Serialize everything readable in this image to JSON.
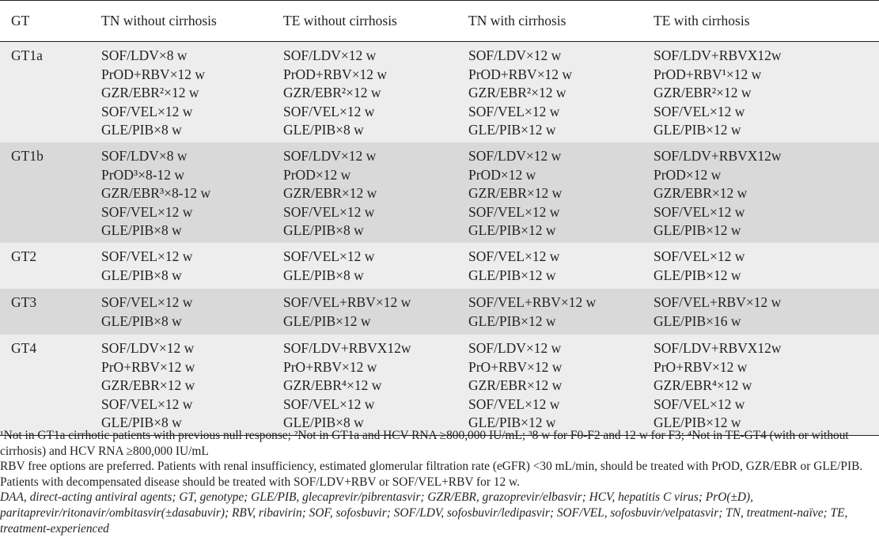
{
  "table": {
    "headers": [
      "GT",
      "TN without cirrhosis",
      "TE without cirrhosis",
      "TN with cirrhosis",
      "TE with cirrhosis"
    ],
    "rows": [
      {
        "gt": "GT1a",
        "tn_without": [
          "SOF/LDV×8 w",
          "PrOD+RBV×12 w",
          "GZR/EBR²×12 w",
          "SOF/VEL×12 w",
          "GLE/PIB×8 w"
        ],
        "te_without": [
          "SOF/LDV×12 w",
          "PrOD+RBV×12 w",
          "GZR/EBR²×12 w",
          "SOF/VEL×12 w",
          "GLE/PIB×8 w"
        ],
        "tn_with": [
          "SOF/LDV×12 w",
          "PrOD+RBV×12 w",
          "GZR/EBR²×12 w",
          "SOF/VEL×12 w",
          "GLE/PIB×12 w"
        ],
        "te_with": [
          "SOF/LDV+RBVX12w",
          "PrOD+RBV¹×12 w",
          "GZR/EBR²×12 w",
          "SOF/VEL×12 w",
          "GLE/PIB×12 w"
        ]
      },
      {
        "gt": "GT1b",
        "tn_without": [
          "SOF/LDV×8 w",
          "PrOD³×8-12 w",
          "GZR/EBR³×8-12 w",
          "SOF/VEL×12 w",
          "GLE/PIB×8 w"
        ],
        "te_without": [
          "SOF/LDV×12 w",
          "PrOD×12 w",
          "GZR/EBR×12 w",
          "SOF/VEL×12 w",
          "GLE/PIB×8 w"
        ],
        "tn_with": [
          "SOF/LDV×12 w",
          "PrOD×12 w",
          "GZR/EBR×12 w",
          "SOF/VEL×12 w",
          "GLE/PIB×12 w"
        ],
        "te_with": [
          "SOF/LDV+RBVX12w",
          "PrOD×12 w",
          "GZR/EBR×12 w",
          "SOF/VEL×12 w",
          "GLE/PIB×12 w"
        ]
      },
      {
        "gt": "GT2",
        "tn_without": [
          "SOF/VEL×12 w",
          "GLE/PIB×8 w"
        ],
        "te_without": [
          "SOF/VEL×12 w",
          "GLE/PIB×8 w"
        ],
        "tn_with": [
          "SOF/VEL×12 w",
          "GLE/PIB×12 w"
        ],
        "te_with": [
          "SOF/VEL×12 w",
          "GLE/PIB×12 w"
        ]
      },
      {
        "gt": "GT3",
        "tn_without": [
          "SOF/VEL×12 w",
          "GLE/PIB×8 w"
        ],
        "te_without": [
          "SOF/VEL+RBV×12 w",
          "GLE/PIB×12 w"
        ],
        "tn_with": [
          "SOF/VEL+RBV×12 w",
          "GLE/PIB×12 w"
        ],
        "te_with": [
          "SOF/VEL+RBV×12 w",
          "GLE/PIB×16 w"
        ]
      },
      {
        "gt": "GT4",
        "tn_without": [
          "SOF/LDV×12 w",
          "PrO+RBV×12 w",
          "GZR/EBR×12 w",
          "SOF/VEL×12 w",
          "GLE/PIB×8 w"
        ],
        "te_without": [
          "SOF/LDV+RBVX12w",
          "PrO+RBV×12 w",
          "GZR/EBR⁴×12 w",
          "SOF/VEL×12 w",
          "GLE/PIB×8 w"
        ],
        "tn_with": [
          "SOF/LDV×12 w",
          "PrO+RBV×12 w",
          "GZR/EBR×12 w",
          "SOF/VEL×12 w",
          "GLE/PIB×12 w"
        ],
        "te_with": [
          "SOF/LDV+RBVX12w",
          "PrO+RBV×12 w",
          "GZR/EBR⁴×12 w",
          "SOF/VEL×12 w",
          "GLE/PIB×12 w"
        ]
      }
    ]
  },
  "footnotes": {
    "notes": "¹Not in GT1a cirrhotic patients with previous null response; ²Not in GT1a and HCV RNA ≥800,000 IU/mL; ³8 w for F0-F2 and 12 w for F3; ⁴Not in TE-GT4 (with or without cirrhosis) and HCV RNA ≥800,000 IU/mL",
    "rbv_free": "RBV free options are preferred. Patients with renal insufficiency, estimated glomerular filtration rate (eGFR) <30 mL/min, should be treated with PrOD, GZR/EBR or GLE/PIB. Patients with decompensated disease should be treated with SOF/LDV+RBV or SOF/VEL+RBV for 12 w.",
    "abbreviations": "DAA, direct-acting antiviral agents; GT, genotype; GLE/PIB, glecaprevir/pibrentasvir; GZR/EBR, grazoprevir/elbasvir; HCV, hepatitis C virus; PrO(±D), paritaprevir/ritonavir/ombitasvir(±dasabuvir); RBV, ribavirin; SOF, sofosbuvir; SOF/LDV, sofosbuvir/ledipasvir; SOF/VEL, sofosbuvir/velpatasvir; TN, treatment-naïve; TE, treatment-experienced"
  }
}
